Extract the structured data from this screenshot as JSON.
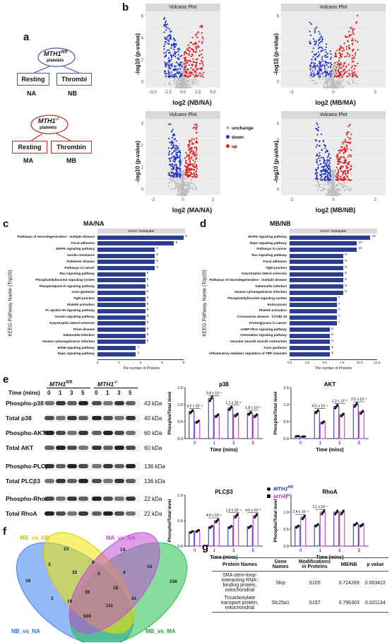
{
  "panels": {
    "a": "a",
    "b": "b",
    "c": "c",
    "d": "d",
    "e": "e",
    "f": "f",
    "g": "g"
  },
  "panel_a": {
    "top_label": "MTH1",
    "top_sup": "fl/fl",
    "top_sub": "platelets",
    "resting": "Resting",
    "thrombi": "Thrombi",
    "na": "NA",
    "nb": "NB",
    "bottom_label": "MTH1",
    "bottom_sup": "-/-",
    "bottom_sub": "platelets",
    "resting2": "Resting",
    "thrombin": "Thrombin",
    "ma": "MA",
    "mb": "MB"
  },
  "volcano": {
    "title": "Volcano Plot",
    "ylabel": "-log10 (p-value)",
    "legend": [
      "unchange",
      "down",
      "up"
    ],
    "colors": {
      "up": "#e31a1c",
      "down": "#1f2fc8",
      "unchange": "#bdbdbd"
    },
    "plots": [
      {
        "xlabel": "log2 (NB/NA)",
        "xticks": [
          "-5.0",
          "-2.5",
          "0.0",
          "2.5",
          "5.0"
        ],
        "yticks": [
          "0",
          "2",
          "4",
          "6"
        ]
      },
      {
        "xlabel": "log2 (MB/MA)",
        "xticks": [
          "-3",
          "0",
          "3"
        ],
        "yticks": [
          "0",
          "2",
          "4",
          "6"
        ]
      },
      {
        "xlabel": "log2 (MA/NA)",
        "xticks": [
          "-2",
          "0",
          "2"
        ],
        "yticks": [
          "0",
          "1",
          "2",
          "3"
        ]
      },
      {
        "xlabel": "log2 (MB/NB)",
        "xticks": [
          "-2",
          "0",
          "2"
        ],
        "yticks": [
          "0",
          "1",
          "2",
          "3",
          "4"
        ]
      }
    ]
  },
  "chart_data": [
    {
      "type": "bar",
      "panel": "c",
      "title": "MA/NA",
      "subtitle": "KEGG TopMapBar",
      "ylabel": "KEEG Pathway Name (Top20)",
      "xlabel": "The number of Proteins",
      "xticks": [
        "0",
        "2",
        "4",
        "6",
        "8"
      ],
      "categories": [
        "Pathways of neurodegeneration - multiple disease",
        "Focal adhesion",
        "MAPK signaling pathway",
        "Insulin resistance",
        "Alzheimer disease",
        "Pathways in cancer",
        "Ras signaling pathway",
        "Phosphatidylinositol signaling system",
        "Phospholipase D signaling pathway",
        "Axon guidance",
        "Tight junction",
        "Platelet activation",
        "Fc epsilon RI signaling pathway",
        "Insulin signaling pathway",
        "Amyotrophic lateral sclerosis",
        "Prion disease",
        "Salmonella infection",
        "Human cytomegalovirus infection",
        "ErbB signaling pathway",
        "Rap1 signaling pathway"
      ],
      "values": [
        9,
        8,
        6,
        6,
        6,
        6,
        5,
        5,
        5,
        5,
        5,
        5,
        5,
        5,
        5,
        5,
        5,
        5,
        4,
        4
      ],
      "xlim": [
        0,
        9
      ]
    },
    {
      "type": "bar",
      "panel": "d",
      "title": "MB/NB",
      "subtitle": "KEGG TopMapBar",
      "ylabel": "KEEG Pathway Name (Top20)",
      "xlabel": "The number of Proteins",
      "xticks": [
        "0.0",
        "2.5",
        "5.0",
        "7.5",
        "10.0",
        "12.5"
      ],
      "categories": [
        "MAPK signaling pathway",
        "Rap1 signaling pathway",
        "Pathways in cancer",
        "Ras signaling pathway",
        "Focal adhesion",
        "Tight junction",
        "Amyotrophic lateral sclerosis",
        "Pathways of neurodegeneration - multiple disease",
        "Salmonella infection",
        "Human cytomegalovirus infection",
        "Phosphatidylinositol signaling system",
        "Endocytosis",
        "Platelet activation",
        "Coronavirus disease - COVID-19",
        "Proteoglycans in cancer",
        "cGMP-PKG signaling pathway",
        "Chemokine signaling pathway",
        "Vascular smooth muscle contraction",
        "Axon guidance",
        "Inflammatory mediator regulation of TRP channels"
      ],
      "values": [
        12,
        10,
        10,
        8,
        8,
        8,
        8,
        8,
        8,
        8,
        7,
        7,
        7,
        7,
        7,
        6,
        6,
        6,
        6,
        6
      ],
      "xlim": [
        0,
        13
      ]
    },
    {
      "type": "bar",
      "panel": "e",
      "title": "p38",
      "xlabel": "Time (mins)",
      "ylabel": "Phospho/Total level",
      "categories": [
        "0",
        "1",
        "3",
        "5"
      ],
      "ylim": [
        0,
        1.5
      ],
      "yticks": [
        "0.0",
        "0.5",
        "1.0",
        "1.5"
      ],
      "series": [
        {
          "name": "MTH1fl/fl",
          "values": [
            0.8,
            1.18,
            0.9,
            0.75
          ]
        },
        {
          "name": "MTH1-/-",
          "values": [
            0.5,
            0.68,
            0.7,
            0.68
          ]
        }
      ],
      "annotations": [
        "4.6 x 10⁻⁶",
        "9.8 x 10⁻⁵",
        "1.1 x 10⁻⁵",
        "1.8 x 10⁻²"
      ]
    },
    {
      "type": "bar",
      "panel": "e",
      "title": "AKT",
      "xlabel": "Time (mins)",
      "ylabel": "Phospho/Total level",
      "categories": [
        "0",
        "1",
        "3",
        "5"
      ],
      "ylim": [
        0,
        1.5
      ],
      "yticks": [
        "0.0",
        "0.5",
        "1.0",
        "1.5"
      ],
      "series": [
        {
          "name": "MTH1fl/fl",
          "values": [
            0.07,
            0.8,
            0.95,
            1.0
          ]
        },
        {
          "name": "MTH1-/-",
          "values": [
            0.06,
            0.48,
            0.7,
            0.78
          ]
        }
      ],
      "annotations": [
        "",
        "6.5 x 10⁻⁵",
        "1.3 x 10⁻²",
        "2.5 x 10⁻⁵"
      ]
    },
    {
      "type": "bar",
      "panel": "e",
      "title": "PLCβ3",
      "xlabel": "Time (mins)",
      "ylabel": "Phospho/Total level",
      "categories": [
        "0",
        "1",
        "3",
        "5"
      ],
      "ylim": [
        0,
        1.0
      ],
      "yticks": [
        "0.0",
        "0.5",
        "1.0"
      ],
      "series": [
        {
          "name": "MTH1fl/fl",
          "values": [
            0.28,
            0.38,
            0.38,
            0.38
          ]
        },
        {
          "name": "MTH1-/-",
          "values": [
            0.3,
            0.5,
            0.6,
            0.6
          ]
        }
      ],
      "annotations": [
        "",
        "4.8 x 10⁻⁵",
        "1.0 x 10⁻⁴",
        "4.0 x 10⁻³"
      ]
    },
    {
      "type": "bar",
      "panel": "e",
      "title": "RhoA",
      "xlabel": "Time (mins)",
      "ylabel": "Phospho/Total level",
      "categories": [
        "0",
        "1",
        "3",
        "5"
      ],
      "ylim": [
        0,
        1.5
      ],
      "yticks": [
        "0.0",
        "0.5",
        "1.0",
        "1.5"
      ],
      "series": [
        {
          "name": "MTH1fl/fl",
          "values": [
            0.58,
            0.62,
            1.0,
            0.65
          ]
        },
        {
          "name": "MTH1-/-",
          "values": [
            0.85,
            1.0,
            1.0,
            0.62
          ]
        }
      ],
      "annotations": [
        "2.4 x 10⁻⁴",
        "3.1 x 10⁻⁷",
        "",
        ""
      ]
    }
  ],
  "panel_e": {
    "time_label": "Time (mins)",
    "group1": "MTH1",
    "group1_sup": "fl/fl",
    "group2": "MTH1",
    "group2_sup": "-/-",
    "times": [
      "0",
      "1",
      "3",
      "5",
      "0",
      "1",
      "3",
      "5"
    ],
    "legend_fl": "MTH1",
    "legend_fl_sup": "fl/fl",
    "legend_ko": "MTH1",
    "legend_ko_sup": "-/-",
    "blots": [
      {
        "name": "Phospho-p38",
        "kda": "43 kDa"
      },
      {
        "name": "Total p38",
        "kda": "40 kDa"
      },
      {
        "name": "Phospho-AKT",
        "kda": "60 kDa"
      },
      {
        "name": "Total AKT",
        "kda": "60 kDa"
      },
      {
        "name": "Phospho-PLCβ3",
        "kda": "136 kDa"
      },
      {
        "name": "Total PLCβ3",
        "kda": "136 kDa"
      },
      {
        "name": "Phospho-RhoA",
        "kda": "22 kDa"
      },
      {
        "name": "Total RhoA",
        "kda": "22 kDa"
      }
    ]
  },
  "venn": {
    "sets": [
      "MB_vs_NB",
      "MA_vs_NA",
      "NB_vs_NA",
      "MB_vs_MA"
    ],
    "colors": {
      "MB_vs_NB": "#f2e600",
      "MA_vs_NA": "#c14dd6",
      "NB_vs_NA": "#3b82f0",
      "MB_vs_MA": "#23c04a"
    },
    "numbers": [
      "23",
      "14",
      "39",
      "236",
      "3",
      "6",
      "15",
      "32",
      "0",
      "4",
      "2",
      "10",
      "36",
      "41",
      "111",
      "509",
      "18"
    ]
  },
  "table": {
    "headers": [
      "Protein Names",
      "Gene Names",
      "Modifications in Proteins",
      "MB/NB",
      "p value"
    ],
    "rows": [
      [
        "SRA stem-loop-interacting RNA-binding protein, mitochondrial",
        "Slirp",
        "S105",
        "0.724269",
        "0.003422"
      ],
      [
        "Tricarboxylate transport protein, mitochondrial",
        "Slc25a1",
        "S157",
        "0.796303",
        "0.021134"
      ]
    ]
  }
}
